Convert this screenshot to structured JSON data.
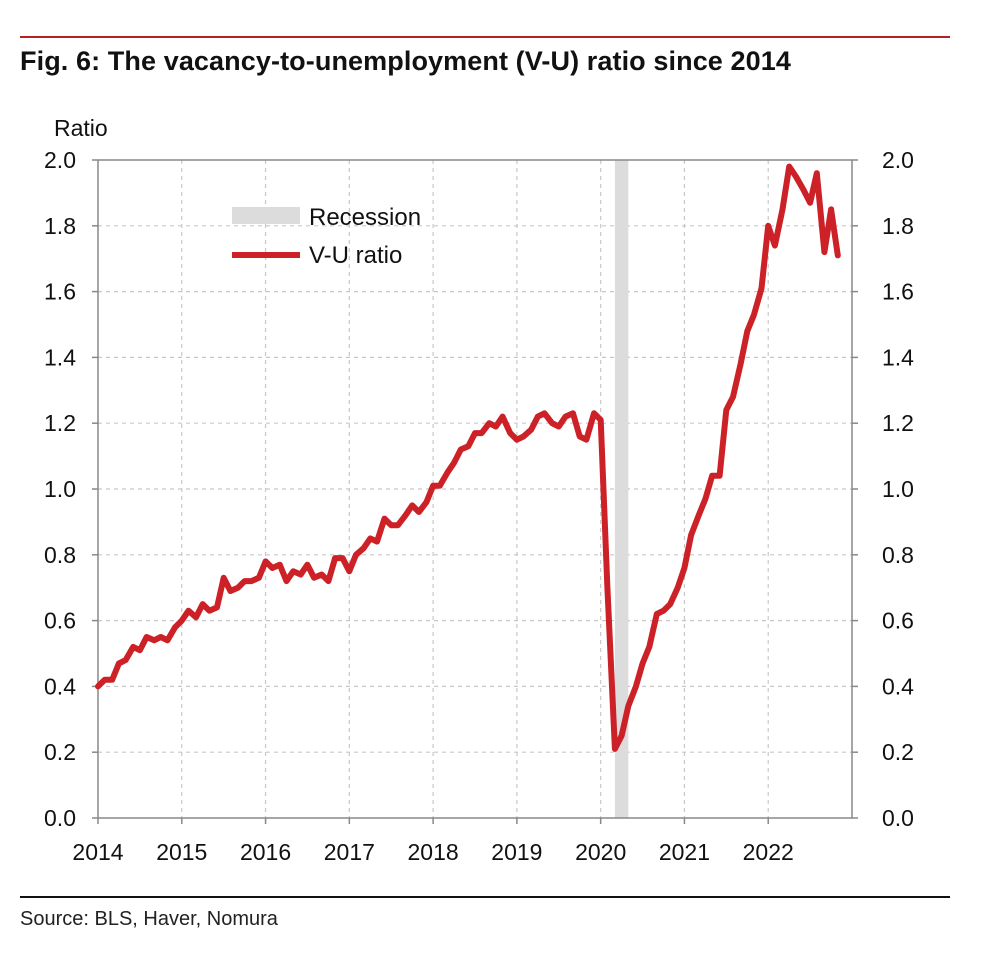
{
  "title": "Fig. 6: The vacancy-to-unemployment (V-U) ratio since 2014",
  "source": "Source: BLS, Haver, Nomura",
  "colors": {
    "series": "#cc2127",
    "recession": "#dcdcdc",
    "accent_rule": "#b22222"
  },
  "chart_data": {
    "type": "line",
    "title": "Fig. 6: The vacancy-to-unemployment (V-U) ratio since 2014",
    "ylabel": "Ratio",
    "xlabel": "",
    "ylim": [
      0,
      2.0
    ],
    "xlim": [
      2014,
      2023
    ],
    "y_ticks": [
      "0.0",
      "0.2",
      "0.4",
      "0.6",
      "0.8",
      "1.0",
      "1.2",
      "1.4",
      "1.6",
      "1.8",
      "2.0"
    ],
    "y_tick_values": [
      0,
      0.2,
      0.4,
      0.6,
      0.8,
      1.0,
      1.2,
      1.4,
      1.6,
      1.8,
      2.0
    ],
    "x_ticks": [
      "2014",
      "2015",
      "2016",
      "2017",
      "2018",
      "2019",
      "2020",
      "2021",
      "2022"
    ],
    "x_tick_values": [
      2014,
      2015,
      2016,
      2017,
      2018,
      2019,
      2020,
      2021,
      2022
    ],
    "grid": true,
    "legend": {
      "position": "top-left",
      "entries": [
        "Recession",
        "V-U ratio"
      ]
    },
    "recession": {
      "name": "Recession",
      "start": 2020.17,
      "end": 2020.33
    },
    "series": [
      {
        "name": "V-U ratio",
        "x": [
          2014.0,
          2014.08,
          2014.17,
          2014.25,
          2014.33,
          2014.42,
          2014.5,
          2014.58,
          2014.67,
          2014.75,
          2014.83,
          2014.92,
          2015.0,
          2015.08,
          2015.17,
          2015.25,
          2015.33,
          2015.42,
          2015.5,
          2015.58,
          2015.67,
          2015.75,
          2015.83,
          2015.92,
          2016.0,
          2016.08,
          2016.17,
          2016.25,
          2016.33,
          2016.42,
          2016.5,
          2016.58,
          2016.67,
          2016.75,
          2016.83,
          2016.92,
          2017.0,
          2017.08,
          2017.17,
          2017.25,
          2017.33,
          2017.42,
          2017.5,
          2017.58,
          2017.67,
          2017.75,
          2017.83,
          2017.92,
          2018.0,
          2018.08,
          2018.17,
          2018.25,
          2018.33,
          2018.42,
          2018.5,
          2018.58,
          2018.67,
          2018.75,
          2018.83,
          2018.92,
          2019.0,
          2019.08,
          2019.17,
          2019.25,
          2019.33,
          2019.42,
          2019.5,
          2019.58,
          2019.67,
          2019.75,
          2019.83,
          2019.92,
          2020.0,
          2020.08,
          2020.17,
          2020.25,
          2020.33,
          2020.42,
          2020.5,
          2020.58,
          2020.67,
          2020.75,
          2020.83,
          2020.92,
          2021.0,
          2021.08,
          2021.17,
          2021.25,
          2021.33,
          2021.42,
          2021.5,
          2021.58,
          2021.67,
          2021.75,
          2021.83,
          2021.92,
          2022.0,
          2022.08,
          2022.17,
          2022.25,
          2022.33,
          2022.42,
          2022.5,
          2022.58,
          2022.67,
          2022.75,
          2022.83
        ],
        "values": [
          0.4,
          0.42,
          0.42,
          0.47,
          0.48,
          0.52,
          0.51,
          0.55,
          0.54,
          0.55,
          0.54,
          0.58,
          0.6,
          0.63,
          0.61,
          0.65,
          0.63,
          0.64,
          0.73,
          0.69,
          0.7,
          0.72,
          0.72,
          0.73,
          0.78,
          0.76,
          0.77,
          0.72,
          0.75,
          0.74,
          0.77,
          0.73,
          0.74,
          0.72,
          0.79,
          0.79,
          0.75,
          0.8,
          0.82,
          0.85,
          0.84,
          0.91,
          0.89,
          0.89,
          0.92,
          0.95,
          0.93,
          0.96,
          1.01,
          1.01,
          1.05,
          1.08,
          1.12,
          1.13,
          1.17,
          1.17,
          1.2,
          1.19,
          1.22,
          1.17,
          1.15,
          1.16,
          1.18,
          1.22,
          1.23,
          1.2,
          1.19,
          1.22,
          1.23,
          1.16,
          1.15,
          1.23,
          1.21,
          0.7,
          0.21,
          0.25,
          0.34,
          0.4,
          0.47,
          0.52,
          0.62,
          0.63,
          0.65,
          0.7,
          0.76,
          0.86,
          0.92,
          0.97,
          1.04,
          1.04,
          1.24,
          1.28,
          1.38,
          1.48,
          1.53,
          1.61,
          1.8,
          1.74,
          1.85,
          1.98,
          1.95,
          1.91,
          1.87,
          1.96,
          1.72,
          1.85,
          1.71
        ]
      }
    ]
  }
}
